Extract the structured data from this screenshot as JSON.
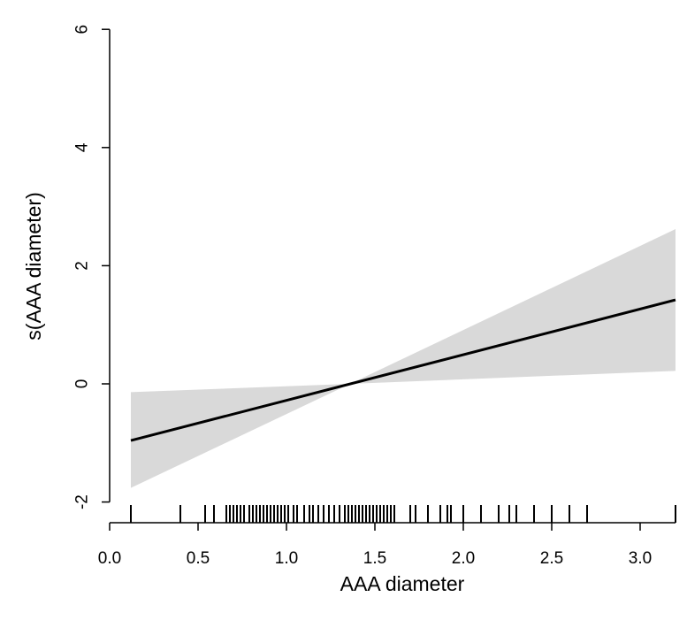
{
  "chart_data": {
    "type": "line",
    "title": "",
    "xlabel": "AAA diameter",
    "ylabel": "s(AAA diameter)",
    "xlim": [
      0.0,
      3.25
    ],
    "ylim": [
      -2.2,
      6.3
    ],
    "x_ticks": [
      0.0,
      0.5,
      1.0,
      1.5,
      2.0,
      2.5,
      3.0
    ],
    "x_tick_labels": [
      "0.0",
      "0.5",
      "1.0",
      "1.5",
      "2.0",
      "2.5",
      "3.0"
    ],
    "y_ticks": [
      -2,
      0,
      2,
      4,
      6
    ],
    "y_tick_labels": [
      "-2",
      "0",
      "2",
      "4",
      "6"
    ],
    "series": [
      {
        "type": "line",
        "x": [
          0.12,
          3.2
        ],
        "y": [
          -0.96,
          1.42
        ]
      },
      {
        "type": "band",
        "x": [
          0.12,
          1.36,
          3.2
        ],
        "lower": [
          -1.76,
          0.0,
          0.22
        ],
        "upper": [
          -0.14,
          0.0,
          2.62
        ]
      }
    ],
    "rug": [
      0.12,
      0.4,
      0.54,
      0.59,
      0.66,
      0.68,
      0.7,
      0.72,
      0.74,
      0.76,
      0.79,
      0.81,
      0.83,
      0.85,
      0.87,
      0.89,
      0.91,
      0.93,
      0.95,
      0.97,
      0.99,
      1.01,
      1.04,
      1.06,
      1.1,
      1.13,
      1.15,
      1.18,
      1.21,
      1.24,
      1.27,
      1.3,
      1.33,
      1.35,
      1.37,
      1.39,
      1.41,
      1.43,
      1.45,
      1.47,
      1.49,
      1.51,
      1.53,
      1.55,
      1.57,
      1.59,
      1.61,
      1.7,
      1.73,
      1.8,
      1.87,
      1.91,
      1.93,
      2.0,
      2.1,
      2.2,
      2.26,
      2.3,
      2.4,
      2.5,
      2.6,
      2.7,
      3.2
    ],
    "colors": {
      "line": "#000000",
      "band": "#d9d9d9",
      "axis": "#000000"
    },
    "grid": false,
    "legend": "none"
  }
}
